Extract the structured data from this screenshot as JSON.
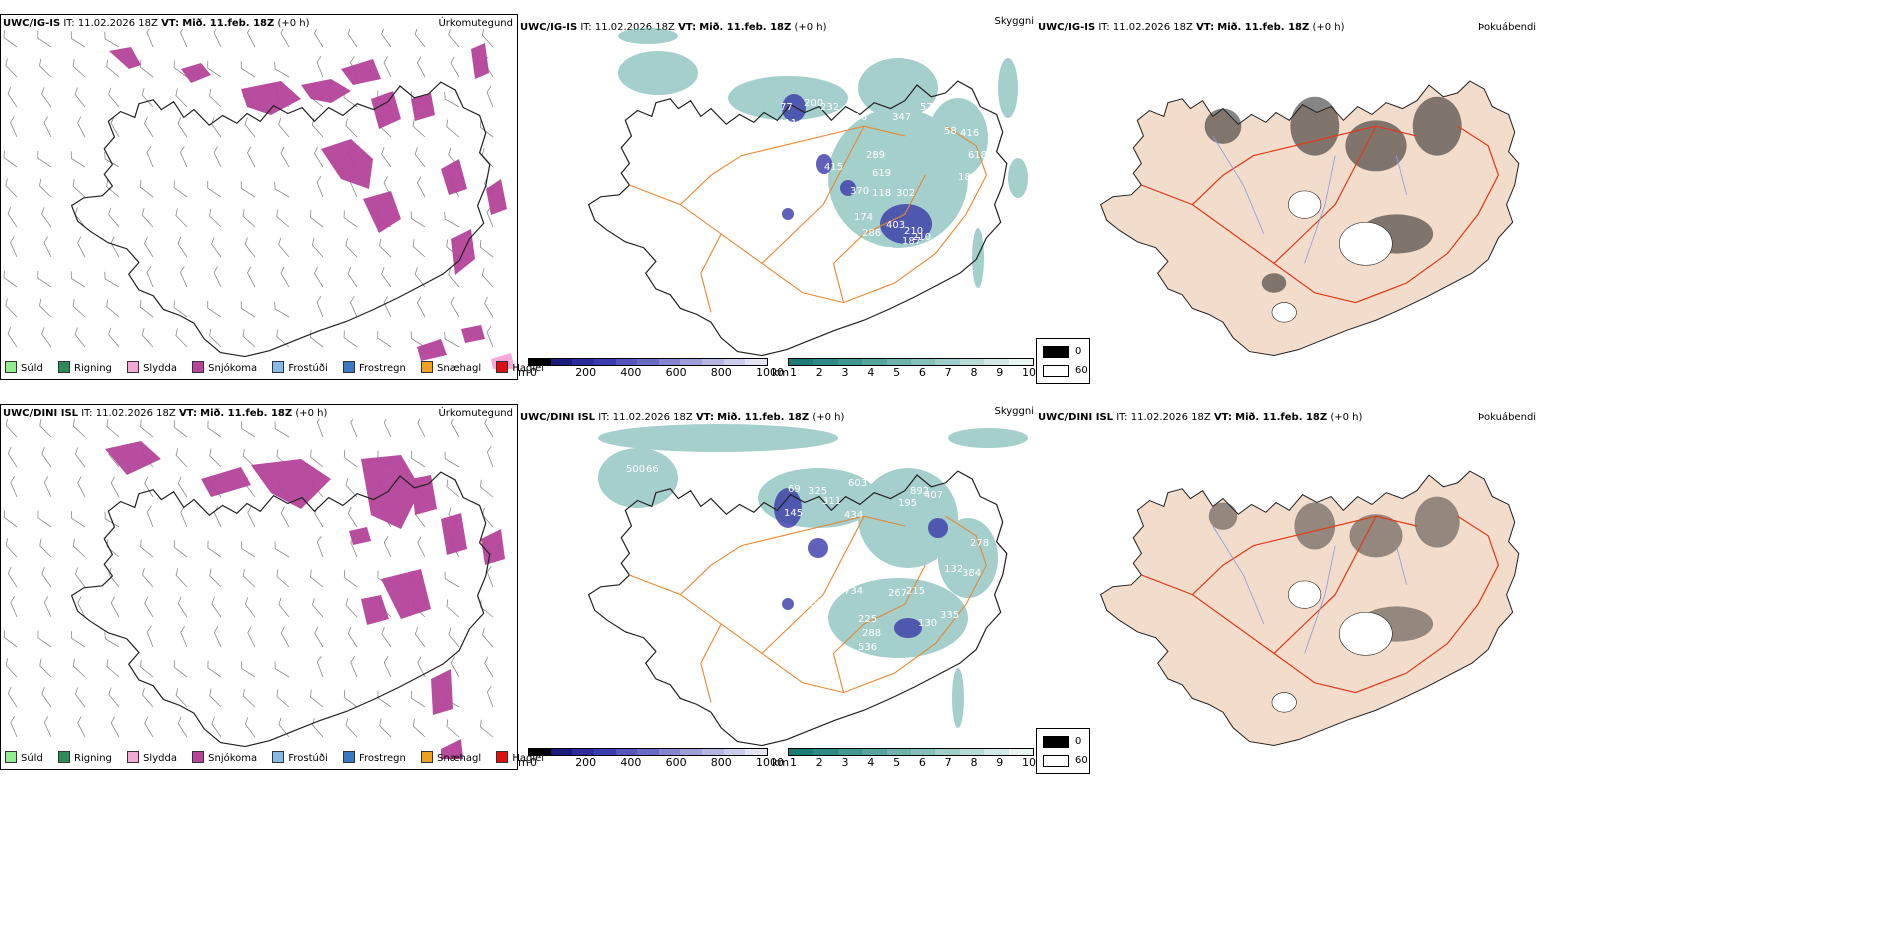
{
  "rows": [
    {
      "model": "UWC/IG-IS",
      "it_label": "IT:",
      "it_value": "11.02.2026 18Z",
      "vt_label": "VT:",
      "vt_value": "Mið. 11.feb. 18Z",
      "offset": "(+0 h)",
      "precip_title": "Úrkomutegund",
      "cloud_title": "Skyggni",
      "fog_title": "Þokuábendi",
      "visibility_labels": [
        "77",
        "200",
        "232",
        "516",
        "347",
        "570",
        "411",
        "600",
        "289",
        "619",
        "415",
        "370",
        "118",
        "302",
        "416",
        "618",
        "174",
        "286",
        "403",
        "210",
        "210",
        "487",
        "187",
        "58",
        "184"
      ]
    },
    {
      "model": "UWC/DINI ISL",
      "it_label": "IT:",
      "it_value": "11.02.2026 18Z",
      "vt_label": "VT:",
      "vt_value": "Mið. 11.feb. 18Z",
      "offset": "(+0 h)",
      "precip_title": "Úrkomutegund",
      "cloud_title": "Skyggni",
      "fog_title": "Þokuábendi",
      "visibility_labels": [
        "500",
        "66",
        "69",
        "325",
        "311",
        "603",
        "892",
        "407",
        "195",
        "434",
        "145",
        "734",
        "267",
        "215",
        "132",
        "225",
        "130",
        "335",
        "288",
        "536",
        "159",
        "384",
        "278"
      ]
    }
  ],
  "precip_legend": [
    {
      "label": "Súld",
      "color": "#90ee90"
    },
    {
      "label": "Rigning",
      "color": "#2e8b57"
    },
    {
      "label": "Slydda",
      "color": "#f4a6d7"
    },
    {
      "label": "Snjókoma",
      "color": "#b5449a"
    },
    {
      "label": "Frostúði",
      "color": "#87b9e8"
    },
    {
      "label": "Frostregn",
      "color": "#3a78c2"
    },
    {
      "label": "Snæhagl",
      "color": "#f0a020"
    },
    {
      "label": "Haglél",
      "color": "#e01010"
    }
  ],
  "ceiling_bar": {
    "unit": "m",
    "ticks": [
      "0",
      "200",
      "400",
      "600",
      "800",
      "1000"
    ],
    "colors": [
      "#000000",
      "#1b1b7a",
      "#2c2c9a",
      "#3b3bb0",
      "#5555bb",
      "#6b6bc4",
      "#8585cf",
      "#9d9dd8",
      "#b5b5e2",
      "#ccccec",
      "#e3e3f4"
    ]
  },
  "visibility_bar": {
    "unit": "km",
    "ticks": [
      "1",
      "2",
      "3",
      "4",
      "5",
      "6",
      "7",
      "8",
      "9",
      "10"
    ],
    "colors": [
      "#1f7a76",
      "#2f8883",
      "#429690",
      "#57a49e",
      "#6db2ac",
      "#84c0ba",
      "#9dcec9",
      "#b7dcd8",
      "#d0e9e6",
      "#e9f5f3"
    ]
  },
  "sun_legend": {
    "values": [
      "0",
      "60"
    ],
    "colors": [
      "#000000",
      "#ffffff"
    ]
  },
  "colors": {
    "snow": "#b5449a",
    "teal": "#5aa9a3",
    "lowcloud": "#3a3aa8",
    "road": "#e8872e",
    "land": "#f2dccb",
    "redroad": "#e23a1a",
    "river": "#8a9de8"
  }
}
